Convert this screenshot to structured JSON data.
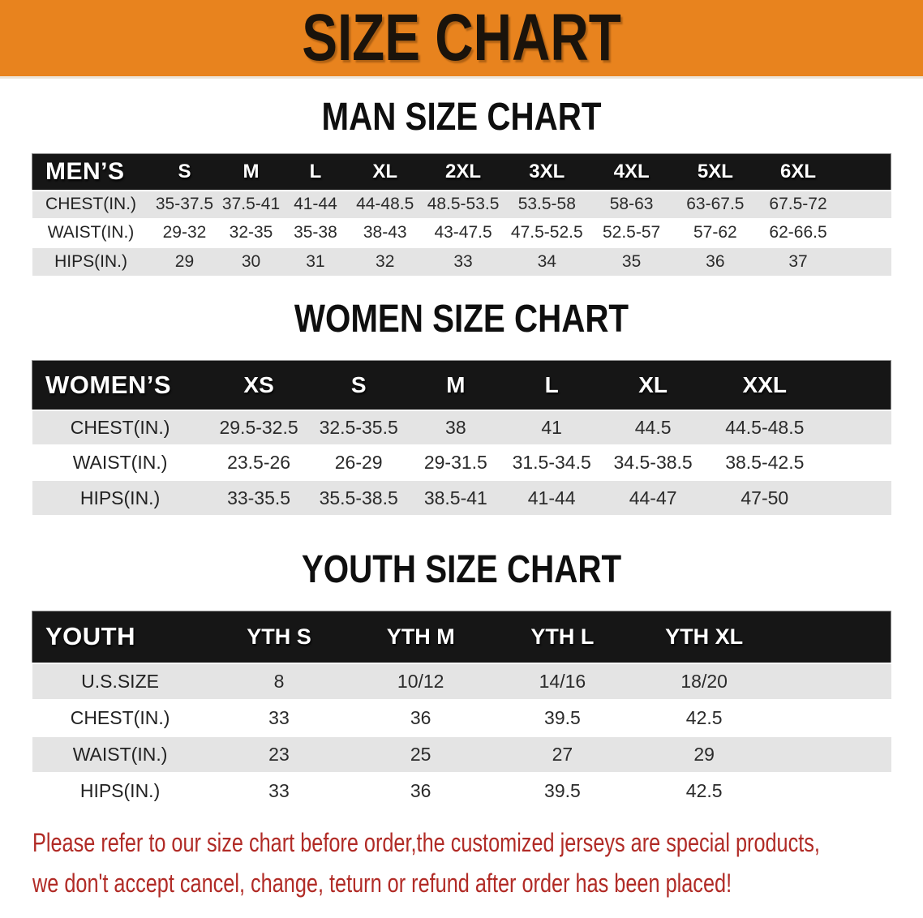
{
  "banner": {
    "title": "SIZE CHART",
    "bg_color": "#e8831e"
  },
  "sections": [
    {
      "heading": "MAN SIZE CHART",
      "table": {
        "header_label": "MEN’S",
        "columns": [
          "S",
          "M",
          "L",
          "XL",
          "2XL",
          "3XL",
          "4XL",
          "5XL",
          "6XL"
        ],
        "rows": [
          {
            "label": "CHEST(IN.)",
            "values": [
              "35-37.5",
              "37.5-41",
              "41-44",
              "44-48.5",
              "48.5-53.5",
              "53.5-58",
              "58-63",
              "63-67.5",
              "67.5-72"
            ]
          },
          {
            "label": "WAIST(IN.)",
            "values": [
              "29-32",
              "32-35",
              "35-38",
              "38-43",
              "43-47.5",
              "47.5-52.5",
              "52.5-57",
              "57-62",
              "62-66.5"
            ]
          },
          {
            "label": "HIPS(IN.)",
            "values": [
              "29",
              "30",
              "31",
              "32",
              "33",
              "34",
              "35",
              "36",
              "37"
            ]
          }
        ]
      }
    },
    {
      "heading": "WOMEN SIZE CHART",
      "table": {
        "header_label": "WOMEN’S",
        "columns": [
          "XS",
          "S",
          "M",
          "L",
          "XL",
          "XXL"
        ],
        "rows": [
          {
            "label": "CHEST(IN.)",
            "values": [
              "29.5-32.5",
              "32.5-35.5",
              "38",
              "41",
              "44.5",
              "44.5-48.5"
            ]
          },
          {
            "label": "WAIST(IN.)",
            "values": [
              "23.5-26",
              "26-29",
              "29-31.5",
              "31.5-34.5",
              "34.5-38.5",
              "38.5-42.5"
            ]
          },
          {
            "label": "HIPS(IN.)",
            "values": [
              "33-35.5",
              "35.5-38.5",
              "38.5-41",
              "41-44",
              "44-47",
              "47-50"
            ]
          }
        ]
      }
    },
    {
      "heading": "YOUTH SIZE CHART",
      "table": {
        "header_label": "YOUTH",
        "columns": [
          "YTH S",
          "YTH M",
          "YTH L",
          "YTH XL"
        ],
        "rows": [
          {
            "label": "U.S.SIZE",
            "values": [
              "8",
              "10/12",
              "14/16",
              "18/20"
            ]
          },
          {
            "label": "CHEST(IN.)",
            "values": [
              "33",
              "36",
              "39.5",
              "42.5"
            ]
          },
          {
            "label": "WAIST(IN.)",
            "values": [
              "23",
              "25",
              "27",
              "29"
            ]
          },
          {
            "label": "HIPS(IN.)",
            "values": [
              "33",
              "36",
              "39.5",
              "42.5"
            ]
          }
        ]
      }
    }
  ],
  "disclaimer": {
    "line1": "Please refer to our size chart before order,the customized jerseys are special products,",
    "line2": "we don't accept cancel, change, teturn or refund after order has been placed!",
    "text_color": "#b12b26"
  },
  "colors": {
    "banner_orange": "#e8831e",
    "band_black": "#161616",
    "row_gray": "#e4e4e4",
    "disclaimer_red": "#b12b26"
  }
}
